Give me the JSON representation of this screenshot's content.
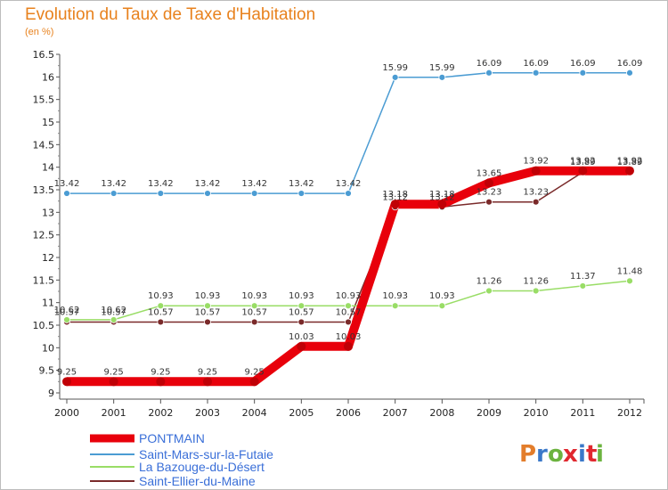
{
  "header": {
    "title": "Evolution du Taux de Taxe d'Habitation",
    "subtitle": "(en %)"
  },
  "logo": {
    "letters": [
      "P",
      "r",
      "o",
      "x",
      "i",
      "t",
      "i"
    ],
    "colors": [
      "#e37d2b",
      "#3a78c9",
      "#6cb33f",
      "#e0282f",
      "#3a78c9",
      "#e0282f",
      "#6cb33f"
    ]
  },
  "chart_data": {
    "type": "line",
    "x": [
      2000,
      2001,
      2002,
      2003,
      2004,
      2005,
      2006,
      2007,
      2008,
      2009,
      2010,
      2011,
      2012
    ],
    "ylim": [
      9,
      16.5
    ],
    "yticks": [
      9,
      9.5,
      10,
      10.5,
      11,
      11.5,
      12,
      12.5,
      13,
      13.5,
      14,
      14.5,
      15,
      15.5,
      16,
      16.5
    ],
    "grid": false,
    "legend_position": "bottom-left",
    "series": [
      {
        "name": "PONTMAIN",
        "color": "#e8000b",
        "values": [
          9.25,
          9.25,
          9.25,
          9.25,
          9.25,
          10.03,
          10.03,
          13.18,
          13.18,
          13.65,
          13.92,
          13.92,
          13.92
        ],
        "labels": [
          "9.25",
          "9.25",
          "9.25",
          "9.25",
          "9.25",
          "10.03",
          "10.03",
          "13.18",
          "13.18",
          "13.65",
          "13.92",
          "13.92",
          "13.92"
        ]
      },
      {
        "name": "Saint-Mars-sur-la-Futaie",
        "color": "#4b9cd3",
        "values": [
          13.42,
          13.42,
          13.42,
          13.42,
          13.42,
          13.42,
          13.42,
          15.99,
          15.99,
          16.09,
          16.09,
          16.09,
          16.09
        ],
        "labels": [
          "13.42",
          "13.42",
          "13.42",
          "13.42",
          "13.42",
          "13.42",
          "13.42",
          "15.99",
          "15.99",
          "16.09",
          "16.09",
          "16.09",
          "16.09"
        ]
      },
      {
        "name": "La Bazouge-du-Désert",
        "color": "#99dd66",
        "values": [
          10.62,
          10.62,
          10.93,
          10.93,
          10.93,
          10.93,
          10.93,
          10.93,
          10.93,
          11.26,
          11.26,
          11.37,
          11.48
        ],
        "labels": [
          "10.62",
          "10.62",
          "10.93",
          "10.93",
          "10.93",
          "10.93",
          "10.93",
          "10.93",
          "10.93",
          "11.26",
          "11.26",
          "11.37",
          "11.48"
        ]
      },
      {
        "name": "Saint-Ellier-du-Maine",
        "color": "#7a2a2a",
        "values": [
          10.57,
          10.57,
          10.57,
          10.57,
          10.57,
          10.57,
          10.57,
          13.12,
          13.12,
          13.23,
          13.23,
          13.89,
          13.89
        ],
        "labels": [
          "10.57",
          "10.57",
          "10.57",
          "10.57",
          "10.57",
          "10.57",
          "10.57",
          "13.12",
          "13.12",
          "13.23",
          "13.23",
          "13.89",
          "13.89"
        ]
      }
    ]
  }
}
